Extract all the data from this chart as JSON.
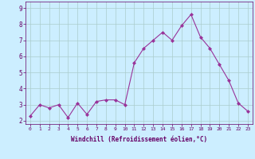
{
  "x": [
    0,
    1,
    2,
    3,
    4,
    5,
    6,
    7,
    8,
    9,
    10,
    11,
    12,
    13,
    14,
    15,
    16,
    17,
    18,
    19,
    20,
    21,
    22,
    23
  ],
  "y": [
    2.3,
    3.0,
    2.8,
    3.0,
    2.2,
    3.1,
    2.4,
    3.2,
    3.3,
    3.3,
    3.0,
    5.6,
    6.5,
    7.0,
    7.5,
    7.0,
    7.9,
    8.6,
    7.2,
    6.5,
    5.5,
    4.5,
    3.1,
    2.6
  ],
  "xlim": [
    -0.5,
    23.5
  ],
  "ylim": [
    1.8,
    9.4
  ],
  "yticks": [
    2,
    3,
    4,
    5,
    6,
    7,
    8,
    9
  ],
  "xticks": [
    0,
    1,
    2,
    3,
    4,
    5,
    6,
    7,
    8,
    9,
    10,
    11,
    12,
    13,
    14,
    15,
    16,
    17,
    18,
    19,
    20,
    21,
    22,
    23
  ],
  "xlabel": "Windchill (Refroidissement éolien,°C)",
  "line_color": "#993399",
  "marker_color": "#993399",
  "bg_color": "#cceeff",
  "grid_color": "#aacccc",
  "label_color": "#660066",
  "tick_color": "#660066",
  "spine_color": "#660066",
  "xlabel_fontsize": 5.5,
  "xtick_fontsize": 4.5,
  "ytick_fontsize": 5.5
}
